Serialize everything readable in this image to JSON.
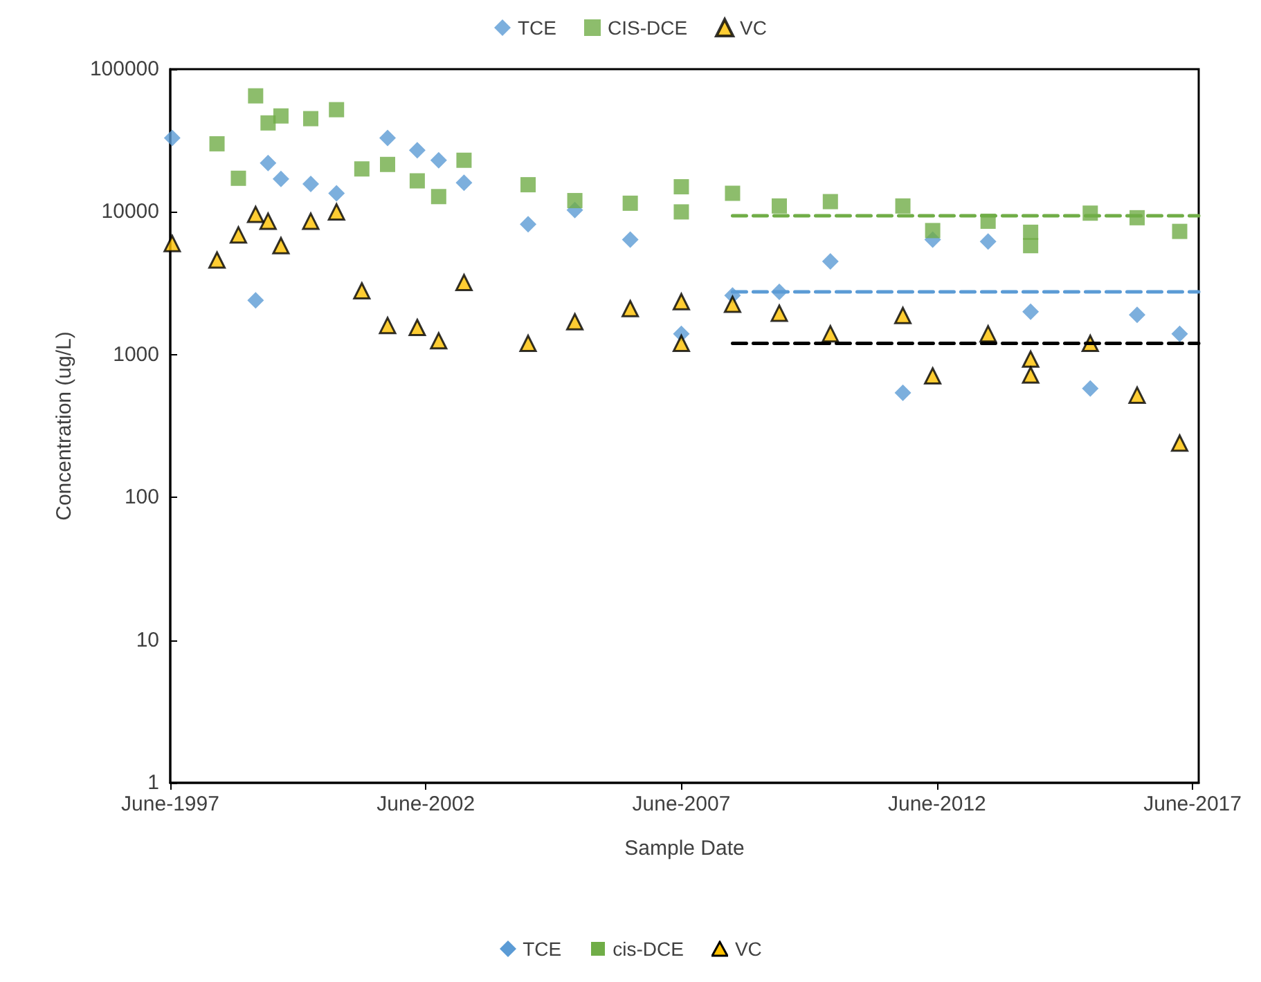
{
  "chart_data": {
    "type": "scatter",
    "xlabel": "Sample Date",
    "ylabel": "Concentration (ug/L)",
    "log": "y",
    "grid": false,
    "legend": "top",
    "xlim": [
      "1997-06-01",
      "2017-07-15"
    ],
    "xticks": [
      {
        "value": "1997-06-01",
        "label": "June-1997"
      },
      {
        "value": "2002-06-01",
        "label": "June-2002"
      },
      {
        "value": "2007-06-01",
        "label": "June-2007"
      },
      {
        "value": "2012-06-01",
        "label": "June-2012"
      },
      {
        "value": "2017-06-01",
        "label": "June-2017"
      }
    ],
    "ylim": [
      1,
      100000
    ],
    "yticks": [
      1,
      10,
      100,
      1000,
      10000,
      100000
    ],
    "annotations": [
      "TCE",
      "cis-DCE",
      "VC"
    ],
    "series": [
      {
        "name": "TCE",
        "color": "#5b9bd5",
        "marker": "diamond",
        "x": [
          "1997-06-15",
          "1998-05",
          "1998-10",
          "1999-02",
          "1999-05",
          "1999-08",
          "2000-03",
          "2000-09",
          "2001-03",
          "2001-09",
          "2002-04",
          "2002-09",
          "2003-03",
          "2004-06",
          "2005-05",
          "2006-06",
          "2007-06",
          "2008-06",
          "2009-05",
          "2010-05",
          "2011-10",
          "2012-05",
          "2013-06",
          "2014-04",
          "2015-06",
          "2016-05",
          "2017-03"
        ],
        "values": [
          33000,
          null,
          null,
          2400,
          22000,
          17000,
          15700,
          13500,
          null,
          33000,
          27000,
          23000,
          16000,
          8200,
          10300,
          6400,
          1400,
          2600,
          2750,
          4500,
          540,
          6400,
          6200,
          2000,
          580,
          1900,
          1400
        ]
      },
      {
        "name": "CIS-DCE",
        "color": "#70ad47",
        "marker": "square",
        "x": [
          "1998-05",
          "1998-10",
          "1999-02",
          "1999-05",
          "1999-08",
          "2000-03",
          "2000-09",
          "2001-03",
          "2001-09",
          "2002-04",
          "2002-09",
          "2003-03",
          "2004-06",
          "2005-05",
          "2006-06",
          "2007-06",
          "2007-06",
          "2008-06",
          "2009-05",
          "2010-05",
          "2011-10",
          "2012-05",
          "2013-06",
          "2014-04",
          "2014-04",
          "2015-06",
          "2016-05",
          "2017-03"
        ],
        "values": [
          30000,
          17200,
          65000,
          42000,
          47000,
          45000,
          52000,
          20000,
          21500,
          16500,
          12800,
          23000,
          15500,
          12000,
          11500,
          15000,
          10000,
          13500,
          11000,
          11800,
          11000,
          7400,
          8600,
          7200,
          5800,
          9800,
          9100,
          7300
        ]
      },
      {
        "name": "VC",
        "color": "#ffc000",
        "marker": "triangle",
        "x": [
          "1997-06-15",
          "1998-05",
          "1998-10",
          "1999-02",
          "1999-05",
          "1999-08",
          "2000-03",
          "2000-09",
          "2001-03",
          "2001-09",
          "2002-04",
          "2002-09",
          "2003-03",
          "2004-06",
          "2005-05",
          "2006-06",
          "2007-06",
          "2007-06",
          "2008-06",
          "2009-05",
          "2010-05",
          "2011-10",
          "2012-05",
          "2013-06",
          "2014-04",
          "2014-04",
          "2015-06",
          "2016-05",
          "2017-03"
        ],
        "values": [
          6000,
          4600,
          6900,
          9600,
          8600,
          5800,
          8600,
          10000,
          2800,
          1600,
          1550,
          1250,
          3200,
          1200,
          1700,
          2100,
          2350,
          1200,
          2250,
          1950,
          1400,
          1880,
          710,
          1400,
          930,
          720,
          1200,
          520,
          240
        ]
      },
      {
        "type": "line",
        "color": "#70ad47",
        "marker": "none",
        "line_style": "dashed",
        "x": [
          "2008-06",
          "2017-07-15"
        ],
        "values": [
          9400,
          9400
        ]
      },
      {
        "type": "line",
        "color": "#5b9bd5",
        "marker": "none",
        "line_style": "dashed",
        "x": [
          "2008-06",
          "2017-07-15"
        ],
        "values": [
          2750,
          2750
        ]
      },
      {
        "type": "line",
        "color": "#000000",
        "marker": "none",
        "line_style": "dashed",
        "x": [
          "2008-06",
          "2017-07-15"
        ],
        "values": [
          1200,
          1200
        ]
      }
    ]
  }
}
